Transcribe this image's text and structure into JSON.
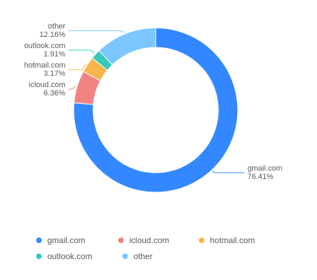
{
  "chart_data": {
    "type": "pie",
    "variant": "donut",
    "title": "",
    "slices": [
      {
        "name": "gmail.com",
        "value": 76.41,
        "label": "76.41%",
        "color": "#3388FF"
      },
      {
        "name": "icloud.com",
        "value": 6.36,
        "label": "6.36%",
        "color": "#F28383"
      },
      {
        "name": "hotmail.com",
        "value": 3.17,
        "label": "3.17%",
        "color": "#F7B64C"
      },
      {
        "name": "outlook.com",
        "value": 1.91,
        "label": "1.91%",
        "color": "#36C9B8"
      },
      {
        "name": "other",
        "value": 12.16,
        "label": "12.16%",
        "color": "#7CC6FF"
      }
    ],
    "legend_placement": "bottom",
    "grid": false
  }
}
